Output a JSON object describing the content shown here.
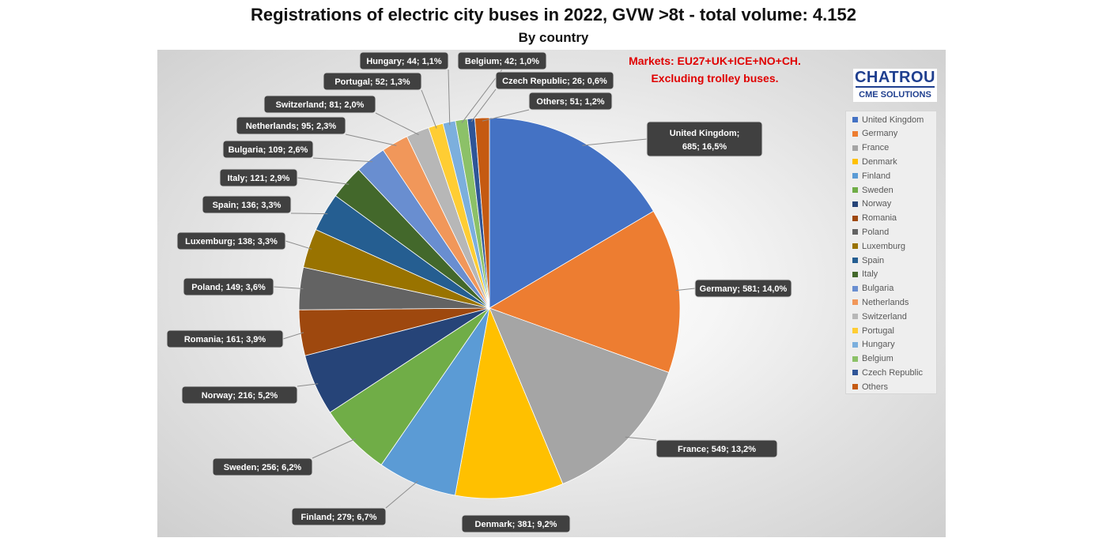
{
  "chart_data": {
    "type": "pie",
    "title": "Registrations of electric city buses in 2022, GVW >8t - total volume: 4.152",
    "subtitle": "By country",
    "annotation": [
      "Markets: EU27+UK+ICE+NO+CH.",
      "Excluding trolley buses."
    ],
    "legend_position": "right",
    "slices": [
      {
        "name": "United Kingdom",
        "value": 685,
        "percent": "16,5%",
        "color": "#4472c4"
      },
      {
        "name": "Germany",
        "value": 581,
        "percent": "14,0%",
        "color": "#ed7d31"
      },
      {
        "name": "France",
        "value": 549,
        "percent": "13,2%",
        "color": "#a5a5a5"
      },
      {
        "name": "Denmark",
        "value": 381,
        "percent": "9,2%",
        "color": "#ffc000"
      },
      {
        "name": "Finland",
        "value": 279,
        "percent": "6,7%",
        "color": "#5b9bd5"
      },
      {
        "name": "Sweden",
        "value": 256,
        "percent": "6,2%",
        "color": "#70ad47"
      },
      {
        "name": "Norway",
        "value": 216,
        "percent": "5,2%",
        "color": "#264478"
      },
      {
        "name": "Romania",
        "value": 161,
        "percent": "3,9%",
        "color": "#9e480e"
      },
      {
        "name": "Poland",
        "value": 149,
        "percent": "3,6%",
        "color": "#636363"
      },
      {
        "name": "Luxemburg",
        "value": 138,
        "percent": "3,3%",
        "color": "#997300"
      },
      {
        "name": "Spain",
        "value": 136,
        "percent": "3,3%",
        "color": "#255e91"
      },
      {
        "name": "Italy",
        "value": 121,
        "percent": "2,9%",
        "color": "#43682b"
      },
      {
        "name": "Bulgaria",
        "value": 109,
        "percent": "2,6%",
        "color": "#698ed0"
      },
      {
        "name": "Netherlands",
        "value": 95,
        "percent": "2,3%",
        "color": "#f1975a"
      },
      {
        "name": "Switzerland",
        "value": 81,
        "percent": "2,0%",
        "color": "#b7b7b7"
      },
      {
        "name": "Portugal",
        "value": 52,
        "percent": "1,3%",
        "color": "#ffcd33"
      },
      {
        "name": "Hungary",
        "value": 44,
        "percent": "1,1%",
        "color": "#7cafdd"
      },
      {
        "name": "Belgium",
        "value": 42,
        "percent": "1,0%",
        "color": "#8cc168"
      },
      {
        "name": "Czech Republic",
        "value": 26,
        "percent": "0,6%",
        "color": "#2f5597"
      },
      {
        "name": "Others",
        "value": 51,
        "percent": "1,2%",
        "color": "#c55a11"
      }
    ]
  },
  "logo": {
    "name": "CHATROU",
    "tagline": "CME SOLUTIONS"
  }
}
